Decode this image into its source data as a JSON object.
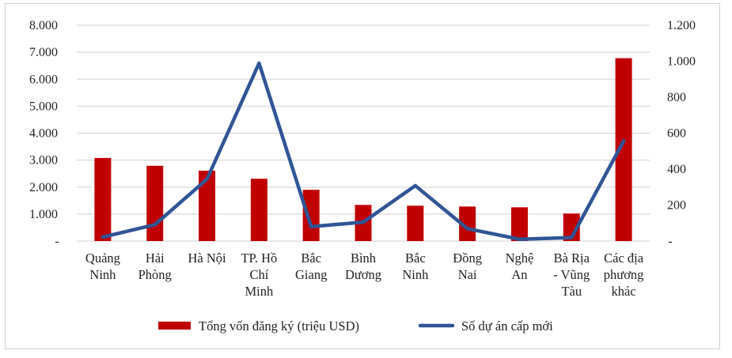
{
  "chart_data": {
    "type": "bar+line",
    "categories": [
      [
        "Quảng",
        "Ninh"
      ],
      [
        "Hải",
        "Phòng"
      ],
      [
        "Hà Nội"
      ],
      [
        "TP. Hồ",
        "Chí",
        "Minh"
      ],
      [
        "Bắc",
        "Giang"
      ],
      [
        "Bình",
        "Dương"
      ],
      [
        "Bắc",
        "Ninh"
      ],
      [
        "Đồng",
        "Nai"
      ],
      [
        "Nghệ",
        "An"
      ],
      [
        "Bà Rịa",
        "- Vũng",
        "Tàu"
      ],
      [
        "Các địa",
        "phương",
        "khác"
      ]
    ],
    "series": [
      {
        "name": "Tổng vốn đăng ký (triệu  USD)",
        "type": "bar",
        "axis": "left",
        "color": "#C00000",
        "values": [
          3080,
          2790,
          2610,
          2310,
          1900,
          1340,
          1310,
          1280,
          1250,
          1020,
          6780
        ]
      },
      {
        "name": "Số dự án cấp mới",
        "type": "line",
        "axis": "right",
        "color": "#2F5597",
        "values": [
          22,
          91,
          344,
          989,
          80,
          105,
          308,
          69,
          10,
          19,
          557
        ]
      }
    ],
    "left_axis": {
      "ylim": [
        0,
        8000
      ],
      "ticks": [
        "-",
        "1.000",
        "2.000",
        "3.000",
        "4.000",
        "5.000",
        "6.000",
        "7.000",
        "8.000"
      ]
    },
    "right_axis": {
      "ylim": [
        0,
        1200
      ],
      "ticks": [
        "-",
        "200",
        "400",
        "600",
        "800",
        "1.000",
        "1.200"
      ]
    },
    "grid": true,
    "legend": "bottom"
  }
}
